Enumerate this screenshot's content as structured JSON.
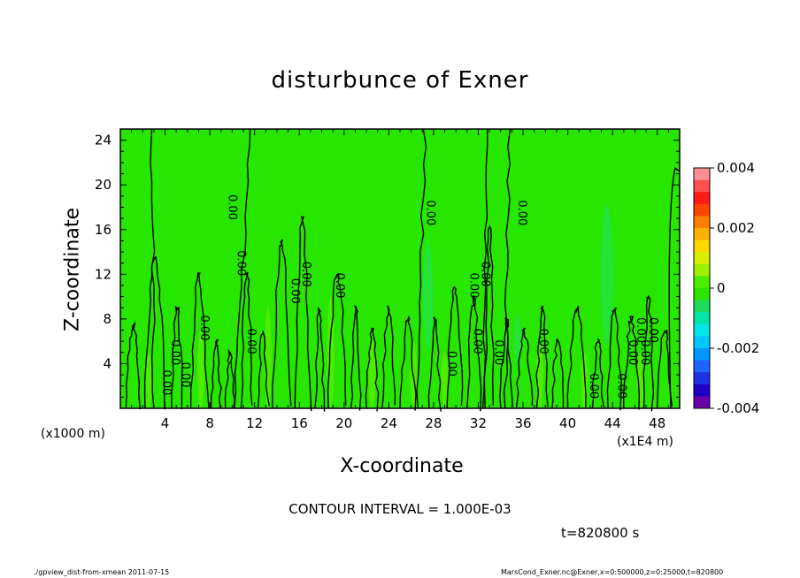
{
  "title": "disturbunce of Exner",
  "chart_data": {
    "type": "heatmap",
    "title": "disturbunce of Exner",
    "xlabel": "X-coordinate",
    "ylabel": "Z-coordinate",
    "x_multiplier_label": "(x1E4 m)",
    "y_multiplier_label": "(x1000 m)",
    "xlim": [
      0,
      50
    ],
    "ylim": [
      0,
      25
    ],
    "x_ticks": [
      4,
      8,
      12,
      16,
      20,
      24,
      28,
      32,
      36,
      40,
      44,
      48
    ],
    "y_ticks": [
      4,
      8,
      12,
      16,
      20,
      24
    ],
    "colorbar": {
      "range": [
        -0.004,
        0.004
      ],
      "tick_labels": [
        "0.004",
        "0.002",
        "0",
        "-0.002",
        "-0.004"
      ],
      "colors": [
        "#ff9090",
        "#ff5050",
        "#ff1a1a",
        "#ff4400",
        "#ff7f00",
        "#ffb000",
        "#ffd800",
        "#d8f000",
        "#9ef000",
        "#4cee00",
        "#2de600",
        "#1edc5a",
        "#00e6a8",
        "#00e6e6",
        "#00c8ff",
        "#0096ff",
        "#1e64ff",
        "#1e32e6",
        "#1e00c8",
        "#6a00a8"
      ]
    },
    "contour_labels": [
      "0.00",
      "0.00",
      "0.00",
      "0.00",
      "0.00",
      "0.00",
      "0.00",
      "0.00",
      "0.00",
      "0.00",
      "0.00",
      "0.00",
      "0.00",
      "0.00",
      "0.00",
      "0.00",
      "0.00",
      "0.00",
      "0.00",
      "0.00",
      "0.00",
      "0.00",
      "0.00",
      "0.00"
    ]
  },
  "contour_interval": "CONTOUR INTERVAL = 1.000E-03",
  "time_label": "t=820800 s",
  "footer": {
    "left": "./gpview_dist-from-xmean  2011-07-15",
    "right": "MarsCond_Exner.nc@Exner,x=0:500000,z=0:25000,t=820800"
  },
  "style": {
    "field_color": "#27e600",
    "field_light": "#6ef000",
    "field_cyan": "#1fe07a"
  }
}
